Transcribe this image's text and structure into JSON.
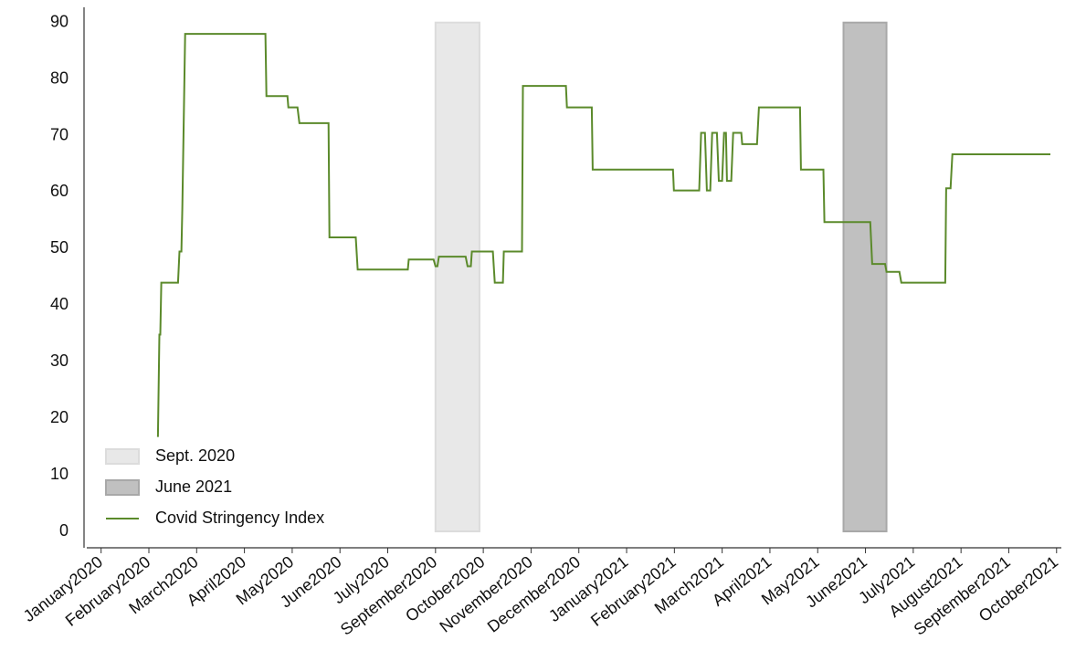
{
  "chart_data": {
    "type": "line",
    "x": [
      1.19,
      1.22,
      1.24,
      1.26,
      1.61,
      1.64,
      1.68,
      1.7,
      1.76,
      3.44,
      3.46,
      3.9,
      3.92,
      4.11,
      4.15,
      4.76,
      4.78,
      5.33,
      5.37,
      6.42,
      6.44,
      6.96,
      7.0,
      7.04,
      7.07,
      7.63,
      7.67,
      7.74,
      7.76,
      8.2,
      8.24,
      8.41,
      8.43,
      8.81,
      8.83,
      9.73,
      9.75,
      10.27,
      10.29,
      11.97,
      11.99,
      12.52,
      12.56,
      12.64,
      12.68,
      12.75,
      12.79,
      12.89,
      12.93,
      13.0,
      13.04,
      13.08,
      13.1,
      13.19,
      13.23,
      13.4,
      13.42,
      13.73,
      13.77,
      14.63,
      14.65,
      15.12,
      15.14,
      16.1,
      16.14,
      16.41,
      16.44,
      16.71,
      16.75,
      17.67,
      17.69,
      17.78,
      17.82,
      19.87
    ],
    "series": [
      {
        "name": "Covid Stringency Index",
        "color": "#5b8a2b",
        "values": [
          16.7,
          34.8,
          34.8,
          44,
          44,
          49.5,
          49.5,
          57,
          88,
          88,
          77,
          77,
          75,
          75,
          72.2,
          72.2,
          52,
          52,
          46.3,
          46.3,
          48.1,
          48.1,
          46.9,
          46.9,
          48.6,
          48.6,
          46.9,
          46.9,
          49.5,
          49.5,
          44,
          44,
          49.5,
          49.5,
          78.8,
          78.8,
          75,
          75,
          64,
          64,
          60.3,
          60.3,
          70.5,
          70.5,
          60.3,
          60.3,
          70.5,
          70.5,
          62,
          62,
          70.5,
          70.5,
          62,
          62,
          70.5,
          70.5,
          68.5,
          68.5,
          75,
          75,
          64,
          64,
          54.7,
          54.7,
          47.3,
          47.3,
          45.9,
          45.9,
          44,
          44,
          60.7,
          60.7,
          66.7,
          66.7
        ]
      }
    ],
    "shaded_regions": [
      {
        "name": "Sept. 2020",
        "start": 7.0,
        "end": 7.92,
        "ymin": 0,
        "ymax": 90,
        "color": "#e8e8e8",
        "edge": "#dcdcdc"
      },
      {
        "name": "June 2021",
        "start": 15.54,
        "end": 16.44,
        "ymin": 0,
        "ymax": 90,
        "color": "#c0c0c0",
        "edge": "#a8a8a8"
      }
    ],
    "xlim": [
      -0.3,
      20.1
    ],
    "xticks": [
      {
        "value": 0,
        "label": "January2020"
      },
      {
        "value": 1,
        "label": "February2020"
      },
      {
        "value": 2,
        "label": "March2020"
      },
      {
        "value": 3,
        "label": "April2020"
      },
      {
        "value": 4,
        "label": "May2020"
      },
      {
        "value": 5,
        "label": "June2020"
      },
      {
        "value": 6,
        "label": "July2020"
      },
      {
        "value": 7,
        "label": "September2020"
      },
      {
        "value": 8,
        "label": "October2020"
      },
      {
        "value": 9,
        "label": "November2020"
      },
      {
        "value": 10,
        "label": "December2020"
      },
      {
        "value": 11,
        "label": "January2021"
      },
      {
        "value": 12,
        "label": "February2021"
      },
      {
        "value": 13,
        "label": "March2021"
      },
      {
        "value": 14,
        "label": "April2021"
      },
      {
        "value": 15,
        "label": "May2021"
      },
      {
        "value": 16,
        "label": "June2021"
      },
      {
        "value": 17,
        "label": "July2021"
      },
      {
        "value": 18,
        "label": "August2021"
      },
      {
        "value": 19,
        "label": "September2021"
      },
      {
        "value": 20,
        "label": "October2021"
      }
    ],
    "ylim": [
      -2.9,
      92.7
    ],
    "yticks": [
      0,
      10,
      20,
      30,
      40,
      50,
      60,
      70,
      80,
      90
    ],
    "grid": false,
    "legend": "lower left"
  }
}
